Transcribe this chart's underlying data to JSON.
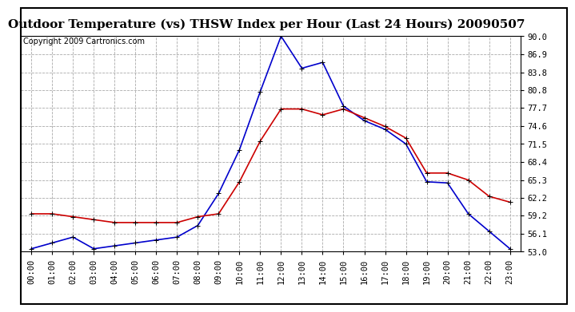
{
  "title": "Outdoor Temperature (vs) THSW Index per Hour (Last 24 Hours) 20090507",
  "copyright": "Copyright 2009 Cartronics.com",
  "hours": [
    0,
    1,
    2,
    3,
    4,
    5,
    6,
    7,
    8,
    9,
    10,
    11,
    12,
    13,
    14,
    15,
    16,
    17,
    18,
    19,
    20,
    21,
    22,
    23
  ],
  "hour_labels": [
    "00:00",
    "01:00",
    "02:00",
    "03:00",
    "04:00",
    "05:00",
    "06:00",
    "07:00",
    "08:00",
    "09:00",
    "10:00",
    "11:00",
    "12:00",
    "13:00",
    "14:00",
    "15:00",
    "16:00",
    "17:00",
    "18:00",
    "19:00",
    "20:00",
    "21:00",
    "22:00",
    "23:00"
  ],
  "thsw": [
    53.5,
    54.5,
    55.5,
    53.5,
    54.0,
    54.5,
    55.0,
    55.5,
    57.5,
    63.0,
    70.5,
    80.5,
    90.0,
    84.5,
    85.5,
    78.0,
    75.5,
    74.0,
    71.5,
    65.0,
    64.8,
    59.5,
    56.5,
    53.5
  ],
  "temp": [
    59.5,
    59.5,
    59.0,
    58.5,
    58.0,
    58.0,
    58.0,
    58.0,
    59.0,
    59.5,
    65.0,
    72.0,
    77.5,
    77.5,
    76.5,
    77.5,
    76.0,
    74.5,
    72.5,
    66.5,
    66.5,
    65.3,
    62.5,
    61.5
  ],
  "thsw_color": "#0000cc",
  "temp_color": "#cc0000",
  "background_color": "#ffffff",
  "plot_background": "#ffffff",
  "grid_color": "#aaaaaa",
  "ylim": [
    53.0,
    90.0
  ],
  "yticks": [
    53.0,
    56.1,
    59.2,
    62.2,
    65.3,
    68.4,
    71.5,
    74.6,
    77.7,
    80.8,
    83.8,
    86.9,
    90.0
  ],
  "title_fontsize": 11,
  "copyright_fontsize": 7,
  "tick_fontsize": 7.5,
  "marker": "+",
  "marker_size": 5,
  "line_width": 1.2
}
